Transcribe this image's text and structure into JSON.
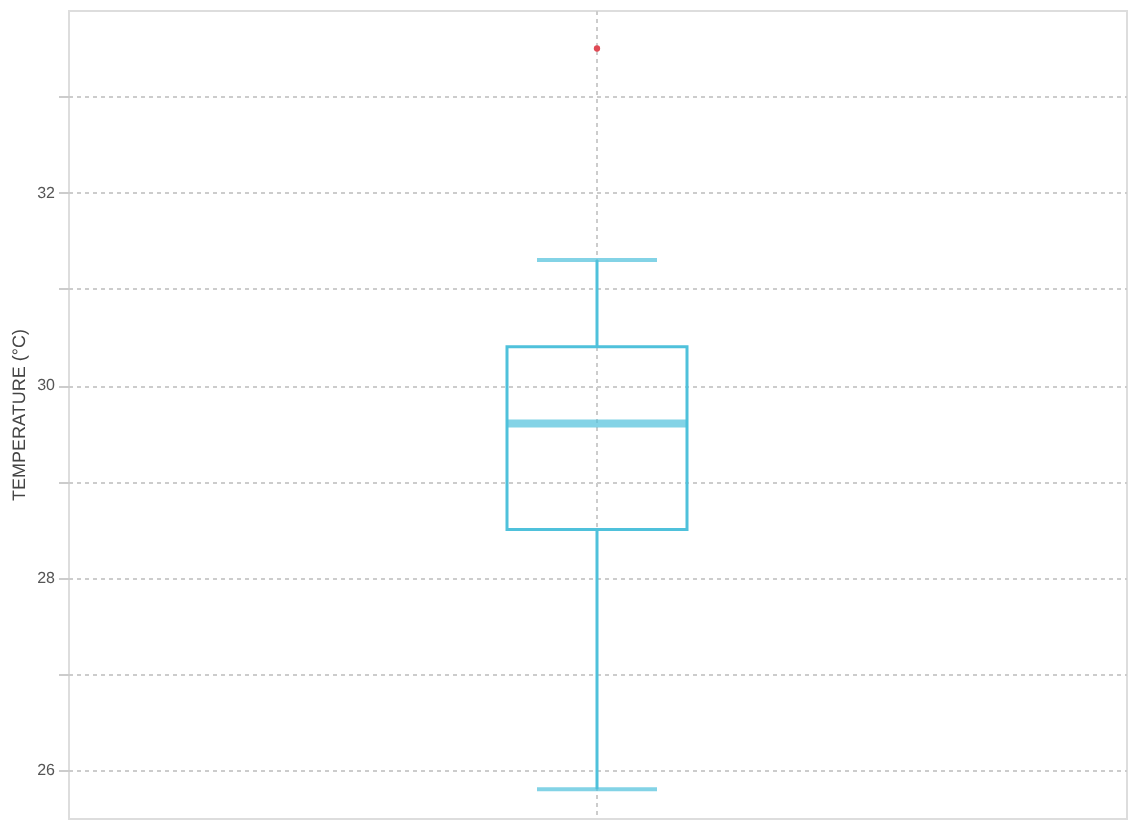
{
  "chart_data": {
    "type": "box",
    "ylabel": "TEMPERATURE (°C)",
    "categories": [
      null
    ],
    "series": [
      {
        "color": "#4fc1db",
        "boxes": [
          {
            "low": 25.8,
            "q1": 28.5,
            "median": 29.6,
            "q3": 30.4,
            "high": 31.3
          }
        ]
      },
      {
        "type": "scatter",
        "color": "#e04a55",
        "values": [
          33.5
        ]
      }
    ],
    "ylim": [
      25.5,
      33.9
    ],
    "yticks": [
      26,
      {
        "value": 27,
        "label": null
      },
      28,
      {
        "value": 29,
        "label": null
      },
      30,
      {
        "value": 31,
        "label": null
      },
      32,
      {
        "value": 33,
        "label": null
      }
    ],
    "grid": true
  }
}
